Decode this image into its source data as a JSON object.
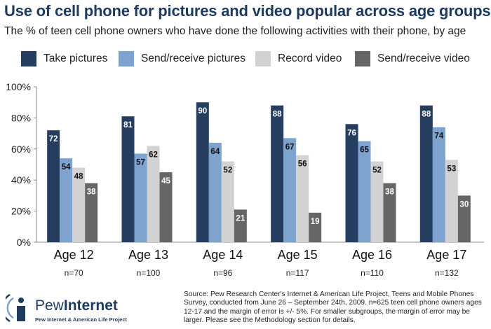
{
  "title": "Use of cell phone for pictures and video popular across age groups",
  "subtitle": "The % of teen cell phone owners who have done the following activities with their phone, by age",
  "colors": {
    "title": "#1f3a5f",
    "take_pictures": "#253d5f",
    "send_receive_pictures": "#7fa3cf",
    "record_video": "#d2d2d2",
    "send_receive_video": "#666666"
  },
  "chart_data": {
    "type": "bar",
    "title": "Use of cell phone for pictures and video popular across age groups",
    "subtitle": "The % of teen cell phone owners who have done the following activities with their phone, by age",
    "categories": [
      "Age 12",
      "Age 13",
      "Age 14",
      "Age 15",
      "Age 16",
      "Age 17"
    ],
    "sample_sizes": [
      "n=70",
      "n=100",
      "n=96",
      "n=117",
      "n=110",
      "n=132"
    ],
    "series": [
      {
        "name": "Take pictures",
        "values": [
          72,
          81,
          90,
          88,
          76,
          88
        ]
      },
      {
        "name": "Send/receive pictures",
        "values": [
          54,
          57,
          64,
          67,
          65,
          74
        ]
      },
      {
        "name": "Record video",
        "values": [
          48,
          62,
          52,
          56,
          52,
          53
        ]
      },
      {
        "name": "Send/receive video",
        "values": [
          38,
          45,
          21,
          19,
          38,
          30
        ]
      }
    ],
    "y_ticks": [
      "0%",
      "20%",
      "40%",
      "60%",
      "80%",
      "100%"
    ],
    "ylim": [
      0,
      100
    ],
    "legend": "top",
    "grid": false
  },
  "footer": {
    "logo_pew": "Pew",
    "logo_internet": "Internet",
    "logo_subtitle": "Pew Internet & American Life Project",
    "source": "Source: Pew Research Center's Internet & American Life Project, Teens and Mobile Phones Survey, conducted from June 26 – September 24th, 2009. n=625 teen cell phone owners ages 12-17 and the margin of error is +/- 5%. For smaller subgroups, the margin of error may be larger. Please see the Methodology section for details."
  }
}
